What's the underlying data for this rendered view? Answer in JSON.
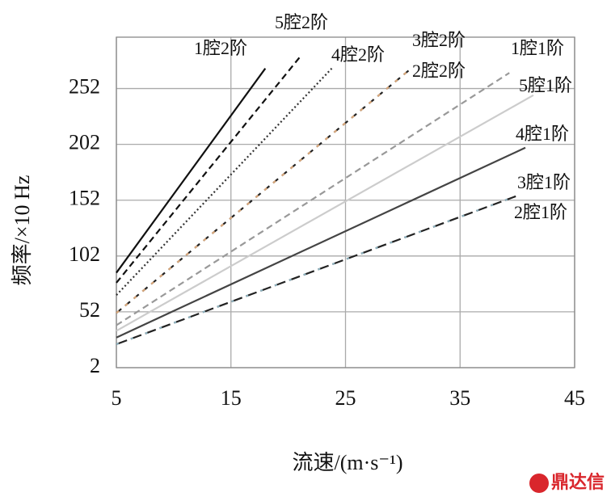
{
  "chart_data": {
    "type": "line",
    "xlabel": "流速/(m·s⁻¹)",
    "ylabel": "频率/×10 Hz",
    "xlim": [
      5,
      45
    ],
    "xticks": [
      5,
      15,
      25,
      35,
      45
    ],
    "ylim": [
      2,
      298
    ],
    "yticks": [
      2,
      52,
      102,
      152,
      202,
      252
    ],
    "grid": true,
    "series": [
      {
        "name": "1腔2阶",
        "color": "#111111",
        "dash": "none",
        "x": [
          5,
          18
        ],
        "values": [
          87,
          270
        ]
      },
      {
        "name": "5腔2阶",
        "color": "#111111",
        "dash": "8 5",
        "x": [
          5,
          21
        ],
        "values": [
          78,
          280
        ]
      },
      {
        "name": "4腔2阶",
        "color": "#333333",
        "dash": "2 3",
        "x": [
          5,
          23.8
        ],
        "values": [
          67,
          270
        ]
      },
      {
        "name": "3腔2阶",
        "color": "#222222",
        "dash": "8 6",
        "x": [
          5,
          30.5
        ],
        "values": [
          51,
          268
        ]
      },
      {
        "name": "2腔2阶",
        "color": "#d9a77a",
        "dash": "4 10",
        "x": [
          5,
          30.5
        ],
        "values": [
          51,
          268
        ]
      },
      {
        "name": "1腔1阶",
        "color": "#999999",
        "dash": "8 5",
        "x": [
          5,
          39.3
        ],
        "values": [
          40,
          266
        ]
      },
      {
        "name": "5腔1阶",
        "color": "#cccccc",
        "dash": "none",
        "x": [
          5,
          41.4
        ],
        "values": [
          35,
          246
        ]
      },
      {
        "name": "4腔1阶",
        "color": "#444444",
        "dash": "none",
        "x": [
          5,
          40.7
        ],
        "values": [
          29,
          199
        ]
      },
      {
        "name": "3腔1阶",
        "color": "#222222",
        "dash": "14 5",
        "x": [
          5,
          40
        ],
        "values": [
          23,
          156
        ]
      },
      {
        "name": "2腔1阶",
        "color": "#8fb3c0",
        "dash": "3 16",
        "x": [
          5,
          40
        ],
        "values": [
          23,
          156
        ]
      }
    ],
    "watermark": "鼎达信"
  }
}
